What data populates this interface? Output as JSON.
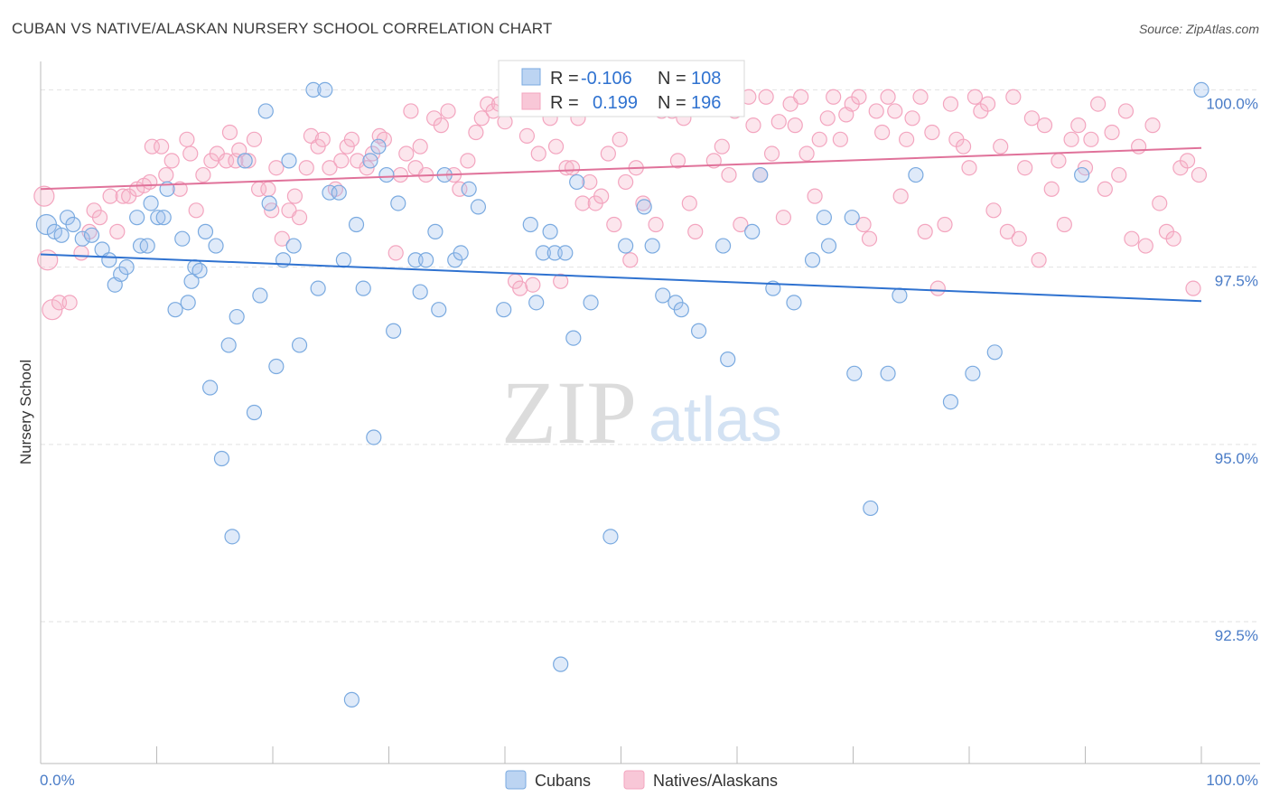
{
  "title": "CUBAN VS NATIVE/ALASKAN NURSERY SCHOOL CORRELATION CHART",
  "source": "Source: ZipAtlas.com",
  "watermark": {
    "zip": "ZIP",
    "atlas": "atlas"
  },
  "colors": {
    "blue": "#7aaae0",
    "blue_line": "#2f72d0",
    "pink": "#f3a5bf",
    "pink_line": "#e0729a",
    "tick": "#4a7cc7"
  },
  "legend_stats": [
    {
      "r_label": "R =",
      "r_value": "-0.106",
      "n_label": "N =",
      "n_value": "108"
    },
    {
      "r_label": "R =",
      "r_value": "0.199",
      "n_label": "N =",
      "n_value": "196"
    }
  ],
  "bottom_legend": [
    "Cubans",
    "Natives/Alaskans"
  ],
  "chart_data": {
    "type": "scatter",
    "title": "CUBAN VS NATIVE/ALASKAN NURSERY SCHOOL CORRELATION CHART",
    "xlabel": "",
    "ylabel": "Nursery School",
    "xlim": [
      0,
      100
    ],
    "ylim": [
      90.5,
      100.4
    ],
    "x_tick_labels": [
      "0.0%",
      "100.0%"
    ],
    "y_ticks": [
      100.0,
      97.5,
      95.0,
      92.5
    ],
    "y_tick_labels": [
      "100.0%",
      "97.5%",
      "95.0%",
      "92.5%"
    ],
    "grid": true,
    "legend_position": "top-center",
    "series": [
      {
        "name": "Cubans",
        "r": -0.106,
        "n": 108,
        "trend": {
          "x": [
            0,
            100
          ],
          "y": [
            97.68,
            97.02
          ]
        },
        "points": [
          [
            0.5,
            98.1
          ],
          [
            1.2,
            98.0
          ],
          [
            1.8,
            97.95
          ],
          [
            2.3,
            98.2
          ],
          [
            2.8,
            98.1
          ],
          [
            3.6,
            97.9
          ],
          [
            4.4,
            97.95
          ],
          [
            5.3,
            97.75
          ],
          [
            5.9,
            97.6
          ],
          [
            6.4,
            97.25
          ],
          [
            6.9,
            97.4
          ],
          [
            7.4,
            97.5
          ],
          [
            8.3,
            98.2
          ],
          [
            8.6,
            97.8
          ],
          [
            9.2,
            97.8
          ],
          [
            9.5,
            98.4
          ],
          [
            10.1,
            98.2
          ],
          [
            10.6,
            98.2
          ],
          [
            10.9,
            98.6
          ],
          [
            11.6,
            96.9
          ],
          [
            12.2,
            97.9
          ],
          [
            12.7,
            97.0
          ],
          [
            13.0,
            97.3
          ],
          [
            13.3,
            97.5
          ],
          [
            13.7,
            97.45
          ],
          [
            14.2,
            98.0
          ],
          [
            14.6,
            95.8
          ],
          [
            15.1,
            97.8
          ],
          [
            15.6,
            94.8
          ],
          [
            16.2,
            96.4
          ],
          [
            16.5,
            93.7
          ],
          [
            16.9,
            96.8
          ],
          [
            17.6,
            99.0
          ],
          [
            18.4,
            95.45
          ],
          [
            18.9,
            97.1
          ],
          [
            19.4,
            99.7
          ],
          [
            19.7,
            98.4
          ],
          [
            20.3,
            96.1
          ],
          [
            20.9,
            97.6
          ],
          [
            21.4,
            99.0
          ],
          [
            21.8,
            97.8
          ],
          [
            22.3,
            96.4
          ],
          [
            23.5,
            100.0
          ],
          [
            23.9,
            97.2
          ],
          [
            24.5,
            100.0
          ],
          [
            24.9,
            98.55
          ],
          [
            25.7,
            98.55
          ],
          [
            26.1,
            97.6
          ],
          [
            26.8,
            91.4
          ],
          [
            27.2,
            98.1
          ],
          [
            27.8,
            97.2
          ],
          [
            28.4,
            99.0
          ],
          [
            28.7,
            95.1
          ],
          [
            29.1,
            99.2
          ],
          [
            29.8,
            98.8
          ],
          [
            30.4,
            96.6
          ],
          [
            30.8,
            98.4
          ],
          [
            32.3,
            97.6
          ],
          [
            32.7,
            97.15
          ],
          [
            33.2,
            97.6
          ],
          [
            34.0,
            98.0
          ],
          [
            34.3,
            96.9
          ],
          [
            34.8,
            98.8
          ],
          [
            35.7,
            97.6
          ],
          [
            36.2,
            97.7
          ],
          [
            36.9,
            98.6
          ],
          [
            37.7,
            98.35
          ],
          [
            39.9,
            96.9
          ],
          [
            42.2,
            98.1
          ],
          [
            42.7,
            97.0
          ],
          [
            43.3,
            97.7
          ],
          [
            43.9,
            98.0
          ],
          [
            44.3,
            97.7
          ],
          [
            44.8,
            91.9
          ],
          [
            45.2,
            97.7
          ],
          [
            45.9,
            96.5
          ],
          [
            46.2,
            98.7
          ],
          [
            47.4,
            97.0
          ],
          [
            49.1,
            93.7
          ],
          [
            50.4,
            97.8
          ],
          [
            52.0,
            98.35
          ],
          [
            52.7,
            97.8
          ],
          [
            53.6,
            97.1
          ],
          [
            54.7,
            97.0
          ],
          [
            55.2,
            96.9
          ],
          [
            56.7,
            96.6
          ],
          [
            58.8,
            97.8
          ],
          [
            59.2,
            96.2
          ],
          [
            61.3,
            98.0
          ],
          [
            62.0,
            98.8
          ],
          [
            63.1,
            97.2
          ],
          [
            64.9,
            97.0
          ],
          [
            66.5,
            97.6
          ],
          [
            67.5,
            98.2
          ],
          [
            67.9,
            97.8
          ],
          [
            69.9,
            98.2
          ],
          [
            70.1,
            96.0
          ],
          [
            71.5,
            94.1
          ],
          [
            73.0,
            96.0
          ],
          [
            74.0,
            97.1
          ],
          [
            75.4,
            98.8
          ],
          [
            78.4,
            95.6
          ],
          [
            80.3,
            96.0
          ],
          [
            82.2,
            96.3
          ],
          [
            89.7,
            98.8
          ],
          [
            100.0,
            100.0
          ]
        ]
      },
      {
        "name": "Natives/Alaskans",
        "r": 0.199,
        "n": 196,
        "trend": {
          "x": [
            0,
            100
          ],
          "y": [
            98.6,
            99.18
          ]
        },
        "points": [
          [
            0.3,
            98.5
          ],
          [
            0.6,
            97.6
          ],
          [
            1.0,
            96.9
          ],
          [
            1.6,
            97.0
          ],
          [
            2.5,
            97.0
          ],
          [
            3.5,
            97.7
          ],
          [
            4.2,
            98.0
          ],
          [
            4.6,
            98.3
          ],
          [
            5.1,
            98.2
          ],
          [
            6.0,
            98.5
          ],
          [
            6.6,
            98.0
          ],
          [
            7.1,
            98.5
          ],
          [
            7.6,
            98.5
          ],
          [
            8.3,
            98.6
          ],
          [
            8.9,
            98.65
          ],
          [
            9.4,
            98.7
          ],
          [
            9.6,
            99.2
          ],
          [
            10.4,
            99.2
          ],
          [
            10.8,
            98.8
          ],
          [
            11.3,
            99.0
          ],
          [
            12.0,
            98.6
          ],
          [
            12.6,
            99.3
          ],
          [
            12.9,
            99.1
          ],
          [
            13.4,
            98.3
          ],
          [
            14.0,
            98.8
          ],
          [
            14.7,
            99.0
          ],
          [
            15.2,
            99.1
          ],
          [
            16.0,
            99.0
          ],
          [
            16.3,
            99.4
          ],
          [
            16.8,
            99.0
          ],
          [
            17.1,
            99.15
          ],
          [
            17.9,
            99.0
          ],
          [
            18.4,
            99.3
          ],
          [
            18.8,
            98.6
          ],
          [
            19.6,
            98.6
          ],
          [
            19.9,
            98.3
          ],
          [
            20.3,
            98.9
          ],
          [
            20.8,
            97.9
          ],
          [
            21.4,
            98.3
          ],
          [
            21.9,
            98.5
          ],
          [
            22.3,
            98.2
          ],
          [
            22.9,
            98.9
          ],
          [
            23.3,
            99.35
          ],
          [
            23.9,
            99.2
          ],
          [
            24.3,
            99.3
          ],
          [
            24.9,
            98.9
          ],
          [
            25.4,
            98.6
          ],
          [
            25.9,
            99.0
          ],
          [
            26.4,
            99.2
          ],
          [
            26.8,
            99.3
          ],
          [
            27.3,
            99.0
          ],
          [
            28.1,
            98.9
          ],
          [
            28.6,
            99.1
          ],
          [
            29.2,
            99.35
          ],
          [
            29.6,
            99.3
          ],
          [
            30.6,
            97.7
          ],
          [
            31.0,
            98.8
          ],
          [
            31.5,
            99.1
          ],
          [
            31.9,
            99.7
          ],
          [
            32.3,
            98.9
          ],
          [
            32.7,
            99.2
          ],
          [
            33.2,
            98.8
          ],
          [
            33.9,
            99.6
          ],
          [
            34.5,
            99.5
          ],
          [
            35.1,
            99.7
          ],
          [
            35.6,
            98.8
          ],
          [
            36.1,
            98.6
          ],
          [
            36.8,
            99.0
          ],
          [
            37.5,
            99.4
          ],
          [
            38.0,
            99.6
          ],
          [
            38.5,
            99.8
          ],
          [
            39.0,
            99.7
          ],
          [
            39.5,
            99.8
          ],
          [
            40.0,
            99.55
          ],
          [
            40.5,
            99.8
          ],
          [
            40.9,
            97.3
          ],
          [
            41.3,
            97.2
          ],
          [
            41.9,
            99.35
          ],
          [
            42.4,
            97.25
          ],
          [
            42.9,
            99.1
          ],
          [
            43.4,
            99.8
          ],
          [
            43.9,
            99.6
          ],
          [
            44.4,
            99.2
          ],
          [
            44.8,
            97.3
          ],
          [
            45.3,
            98.9
          ],
          [
            45.8,
            98.9
          ],
          [
            46.3,
            99.6
          ],
          [
            46.7,
            98.4
          ],
          [
            47.3,
            98.7
          ],
          [
            47.8,
            98.4
          ],
          [
            48.3,
            98.5
          ],
          [
            48.9,
            99.1
          ],
          [
            49.4,
            98.1
          ],
          [
            49.9,
            99.3
          ],
          [
            50.4,
            98.7
          ],
          [
            50.8,
            97.6
          ],
          [
            51.3,
            98.9
          ],
          [
            51.9,
            98.4
          ],
          [
            52.5,
            99.8
          ],
          [
            53.0,
            98.1
          ],
          [
            53.5,
            99.7
          ],
          [
            54.0,
            99.8
          ],
          [
            54.4,
            99.7
          ],
          [
            54.9,
            99.0
          ],
          [
            55.4,
            99.6
          ],
          [
            55.9,
            98.4
          ],
          [
            56.4,
            98.0
          ],
          [
            56.9,
            99.8
          ],
          [
            57.4,
            99.9
          ],
          [
            58.0,
            99.0
          ],
          [
            58.7,
            99.2
          ],
          [
            59.3,
            98.8
          ],
          [
            59.8,
            99.7
          ],
          [
            60.3,
            98.1
          ],
          [
            61.0,
            99.9
          ],
          [
            61.4,
            99.5
          ],
          [
            62.0,
            98.8
          ],
          [
            62.5,
            99.9
          ],
          [
            63.0,
            99.1
          ],
          [
            63.6,
            99.55
          ],
          [
            64.0,
            98.2
          ],
          [
            64.6,
            99.8
          ],
          [
            65.0,
            99.5
          ],
          [
            65.5,
            99.9
          ],
          [
            66.0,
            99.1
          ],
          [
            66.7,
            98.5
          ],
          [
            67.1,
            99.3
          ],
          [
            67.8,
            99.6
          ],
          [
            68.3,
            99.9
          ],
          [
            68.9,
            99.3
          ],
          [
            69.4,
            99.65
          ],
          [
            69.9,
            99.8
          ],
          [
            70.5,
            99.9
          ],
          [
            70.9,
            98.1
          ],
          [
            71.4,
            97.9
          ],
          [
            72.0,
            99.7
          ],
          [
            72.5,
            99.4
          ],
          [
            73.0,
            99.9
          ],
          [
            73.6,
            99.7
          ],
          [
            74.1,
            98.5
          ],
          [
            74.6,
            99.3
          ],
          [
            75.1,
            99.6
          ],
          [
            75.8,
            99.9
          ],
          [
            76.2,
            98.0
          ],
          [
            76.8,
            99.4
          ],
          [
            77.3,
            97.2
          ],
          [
            77.9,
            98.1
          ],
          [
            78.4,
            99.8
          ],
          [
            78.9,
            99.3
          ],
          [
            79.5,
            99.2
          ],
          [
            80.0,
            98.9
          ],
          [
            80.5,
            99.9
          ],
          [
            81.0,
            99.7
          ],
          [
            81.6,
            99.8
          ],
          [
            82.1,
            98.3
          ],
          [
            82.7,
            99.2
          ],
          [
            83.3,
            98.0
          ],
          [
            83.8,
            99.9
          ],
          [
            84.3,
            97.9
          ],
          [
            84.8,
            98.9
          ],
          [
            85.4,
            99.6
          ],
          [
            86.0,
            97.6
          ],
          [
            86.5,
            99.5
          ],
          [
            87.1,
            98.6
          ],
          [
            87.7,
            99.0
          ],
          [
            88.2,
            98.1
          ],
          [
            88.8,
            99.3
          ],
          [
            89.4,
            99.5
          ],
          [
            90.0,
            98.9
          ],
          [
            90.5,
            99.3
          ],
          [
            91.1,
            99.8
          ],
          [
            91.7,
            98.6
          ],
          [
            92.3,
            99.4
          ],
          [
            92.9,
            98.8
          ],
          [
            93.5,
            99.7
          ],
          [
            94.0,
            97.9
          ],
          [
            94.6,
            99.2
          ],
          [
            95.2,
            97.8
          ],
          [
            95.8,
            99.5
          ],
          [
            96.4,
            98.4
          ],
          [
            97.0,
            98.0
          ],
          [
            97.6,
            97.9
          ],
          [
            98.2,
            98.9
          ],
          [
            98.8,
            99.0
          ],
          [
            99.3,
            97.2
          ],
          [
            99.8,
            98.8
          ]
        ]
      }
    ]
  }
}
